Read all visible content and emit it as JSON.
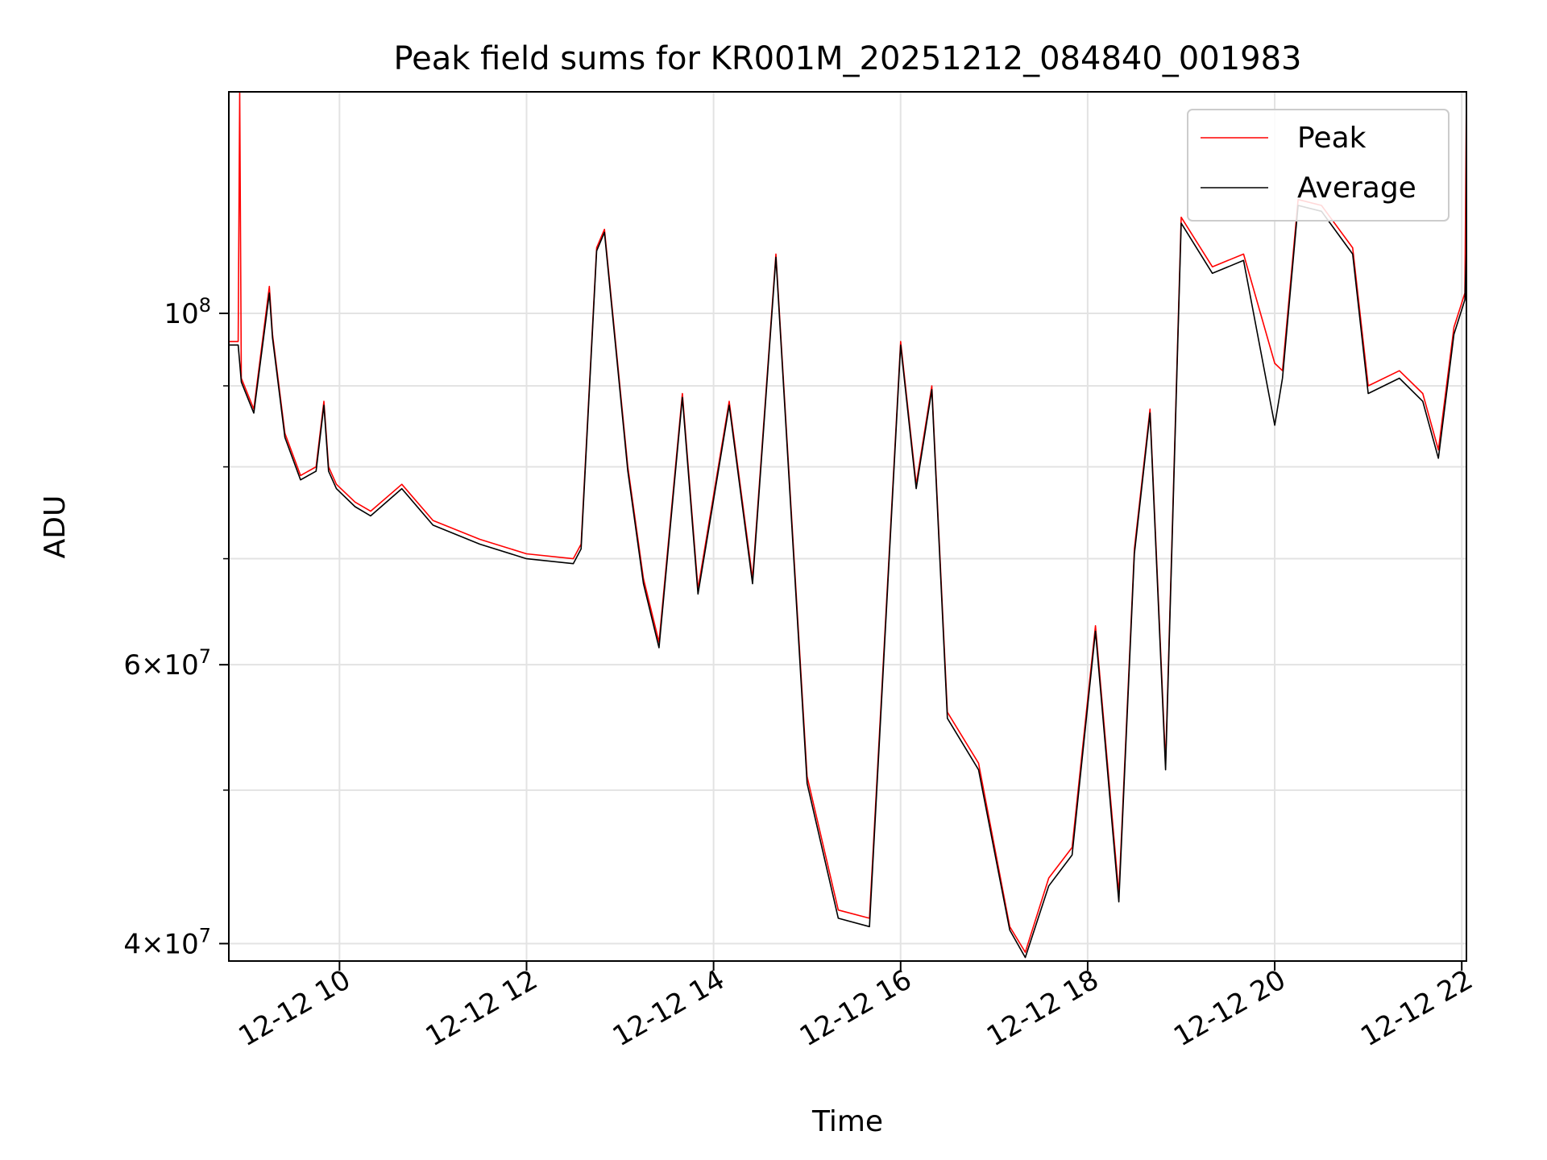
{
  "chart_data": {
    "type": "line",
    "title": "Peak field sums for KR001M_20251212_084840_001983",
    "xlabel": "Time",
    "ylabel": "ADU",
    "y_scale": "log",
    "grid": true,
    "legend_position": "top-right",
    "xlim": [
      "2025-12-12 08:49",
      "2025-12-12 22:03"
    ],
    "ylim": [
      39000000,
      138000000
    ],
    "x_ticks": [
      {
        "value": "2025-12-12 10:00",
        "label": "12-12 10"
      },
      {
        "value": "2025-12-12 12:00",
        "label": "12-12 12"
      },
      {
        "value": "2025-12-12 14:00",
        "label": "12-12 14"
      },
      {
        "value": "2025-12-12 16:00",
        "label": "12-12 16"
      },
      {
        "value": "2025-12-12 18:00",
        "label": "12-12 18"
      },
      {
        "value": "2025-12-12 20:00",
        "label": "12-12 20"
      },
      {
        "value": "2025-12-12 22:00",
        "label": "12-12 22"
      }
    ],
    "y_major_ticks": [
      {
        "value": 100000000,
        "base": "10",
        "exp": "8"
      },
      {
        "value": 60000000,
        "base": "6×10",
        "exp": "7"
      },
      {
        "value": 40000000,
        "base": "4×10",
        "exp": "7"
      }
    ],
    "y_minor_ticks": [
      50000000,
      70000000,
      80000000,
      90000000
    ],
    "series": [
      {
        "name": "Peak",
        "color": "#ff0000",
        "x": [
          "2025-12-12 08:49",
          "2025-12-12 08:55",
          "2025-12-12 08:56",
          "2025-12-12 08:57",
          "2025-12-12 09:05",
          "2025-12-12 09:15",
          "2025-12-12 09:17",
          "2025-12-12 09:25",
          "2025-12-12 09:35",
          "2025-12-12 09:45",
          "2025-12-12 09:50",
          "2025-12-12 09:53",
          "2025-12-12 09:58",
          "2025-12-12 10:10",
          "2025-12-12 10:20",
          "2025-12-12 10:40",
          "2025-12-12 11:00",
          "2025-12-12 11:30",
          "2025-12-12 12:00",
          "2025-12-12 12:30",
          "2025-12-12 12:35",
          "2025-12-12 12:45",
          "2025-12-12 12:50",
          "2025-12-12 13:05",
          "2025-12-12 13:15",
          "2025-12-12 13:25",
          "2025-12-12 13:40",
          "2025-12-12 13:50",
          "2025-12-12 14:10",
          "2025-12-12 14:25",
          "2025-12-12 14:40",
          "2025-12-12 15:00",
          "2025-12-12 15:20",
          "2025-12-12 15:40",
          "2025-12-12 16:00",
          "2025-12-12 16:10",
          "2025-12-12 16:20",
          "2025-12-12 16:30",
          "2025-12-12 16:50",
          "2025-12-12 17:10",
          "2025-12-12 17:20",
          "2025-12-12 17:35",
          "2025-12-12 17:50",
          "2025-12-12 18:05",
          "2025-12-12 18:20",
          "2025-12-12 18:30",
          "2025-12-12 18:40",
          "2025-12-12 18:50",
          "2025-12-12 19:00",
          "2025-12-12 19:20",
          "2025-12-12 19:40",
          "2025-12-12 20:00",
          "2025-12-12 20:05",
          "2025-12-12 20:15",
          "2025-12-12 20:30",
          "2025-12-12 20:50",
          "2025-12-12 21:00",
          "2025-12-12 21:20",
          "2025-12-12 21:35",
          "2025-12-12 21:45",
          "2025-12-12 21:55",
          "2025-12-12 22:02",
          "2025-12-12 22:03"
        ],
        "y": [
          96000000,
          96000000,
          138000000,
          91000000,
          87000000,
          104000000,
          97000000,
          84000000,
          79000000,
          80000000,
          88000000,
          80000000,
          78000000,
          76000000,
          75000000,
          78000000,
          74000000,
          72000000,
          70500000,
          70000000,
          71500000,
          110000000,
          113000000,
          80000000,
          68000000,
          62000000,
          89000000,
          67000000,
          88000000,
          68000000,
          109000000,
          51000000,
          42000000,
          41500000,
          96000000,
          78000000,
          90000000,
          56000000,
          52000000,
          41000000,
          39500000,
          44000000,
          46000000,
          63500000,
          43000000,
          71000000,
          87000000,
          52000000,
          115000000,
          107000000,
          109000000,
          93000000,
          92000000,
          118000000,
          117000000,
          110000000,
          90000000,
          92000000,
          89000000,
          82000000,
          98000000,
          103000000,
          138000000
        ]
      },
      {
        "name": "Average",
        "color": "#000000",
        "x": [
          "2025-12-12 08:49",
          "2025-12-12 08:55",
          "2025-12-12 08:57",
          "2025-12-12 09:05",
          "2025-12-12 09:15",
          "2025-12-12 09:17",
          "2025-12-12 09:25",
          "2025-12-12 09:35",
          "2025-12-12 09:45",
          "2025-12-12 09:50",
          "2025-12-12 09:53",
          "2025-12-12 09:58",
          "2025-12-12 10:10",
          "2025-12-12 10:20",
          "2025-12-12 10:40",
          "2025-12-12 11:00",
          "2025-12-12 11:30",
          "2025-12-12 12:00",
          "2025-12-12 12:30",
          "2025-12-12 12:35",
          "2025-12-12 12:45",
          "2025-12-12 12:50",
          "2025-12-12 13:05",
          "2025-12-12 13:15",
          "2025-12-12 13:25",
          "2025-12-12 13:40",
          "2025-12-12 13:50",
          "2025-12-12 14:10",
          "2025-12-12 14:25",
          "2025-12-12 14:40",
          "2025-12-12 15:00",
          "2025-12-12 15:20",
          "2025-12-12 15:40",
          "2025-12-12 16:00",
          "2025-12-12 16:10",
          "2025-12-12 16:20",
          "2025-12-12 16:30",
          "2025-12-12 16:50",
          "2025-12-12 17:10",
          "2025-12-12 17:20",
          "2025-12-12 17:35",
          "2025-12-12 17:50",
          "2025-12-12 18:05",
          "2025-12-12 18:20",
          "2025-12-12 18:30",
          "2025-12-12 18:40",
          "2025-12-12 18:50",
          "2025-12-12 19:00",
          "2025-12-12 19:20",
          "2025-12-12 19:40",
          "2025-12-12 20:00",
          "2025-12-12 20:05",
          "2025-12-12 20:15",
          "2025-12-12 20:30",
          "2025-12-12 20:50",
          "2025-12-12 21:00",
          "2025-12-12 21:20",
          "2025-12-12 21:35",
          "2025-12-12 21:45",
          "2025-12-12 21:55",
          "2025-12-12 22:02",
          "2025-12-12 22:03"
        ],
        "y": [
          95500000,
          95500000,
          90500000,
          86500000,
          103000000,
          96500000,
          83500000,
          78500000,
          79500000,
          87500000,
          79500000,
          77500000,
          75500000,
          74500000,
          77500000,
          73500000,
          71500000,
          70000000,
          69500000,
          71000000,
          109500000,
          112500000,
          79500000,
          67500000,
          61500000,
          88500000,
          66500000,
          87500000,
          67500000,
          108500000,
          50500000,
          41500000,
          41000000,
          95500000,
          77500000,
          89500000,
          55500000,
          51500000,
          40800000,
          39200000,
          43500000,
          45500000,
          63000000,
          42500000,
          70500000,
          86500000,
          51500000,
          114000000,
          106000000,
          108000000,
          85000000,
          91000000,
          117000000,
          116000000,
          109000000,
          89000000,
          91000000,
          88000000,
          81000000,
          97000000,
          102000000,
          110000000
        ]
      }
    ]
  }
}
